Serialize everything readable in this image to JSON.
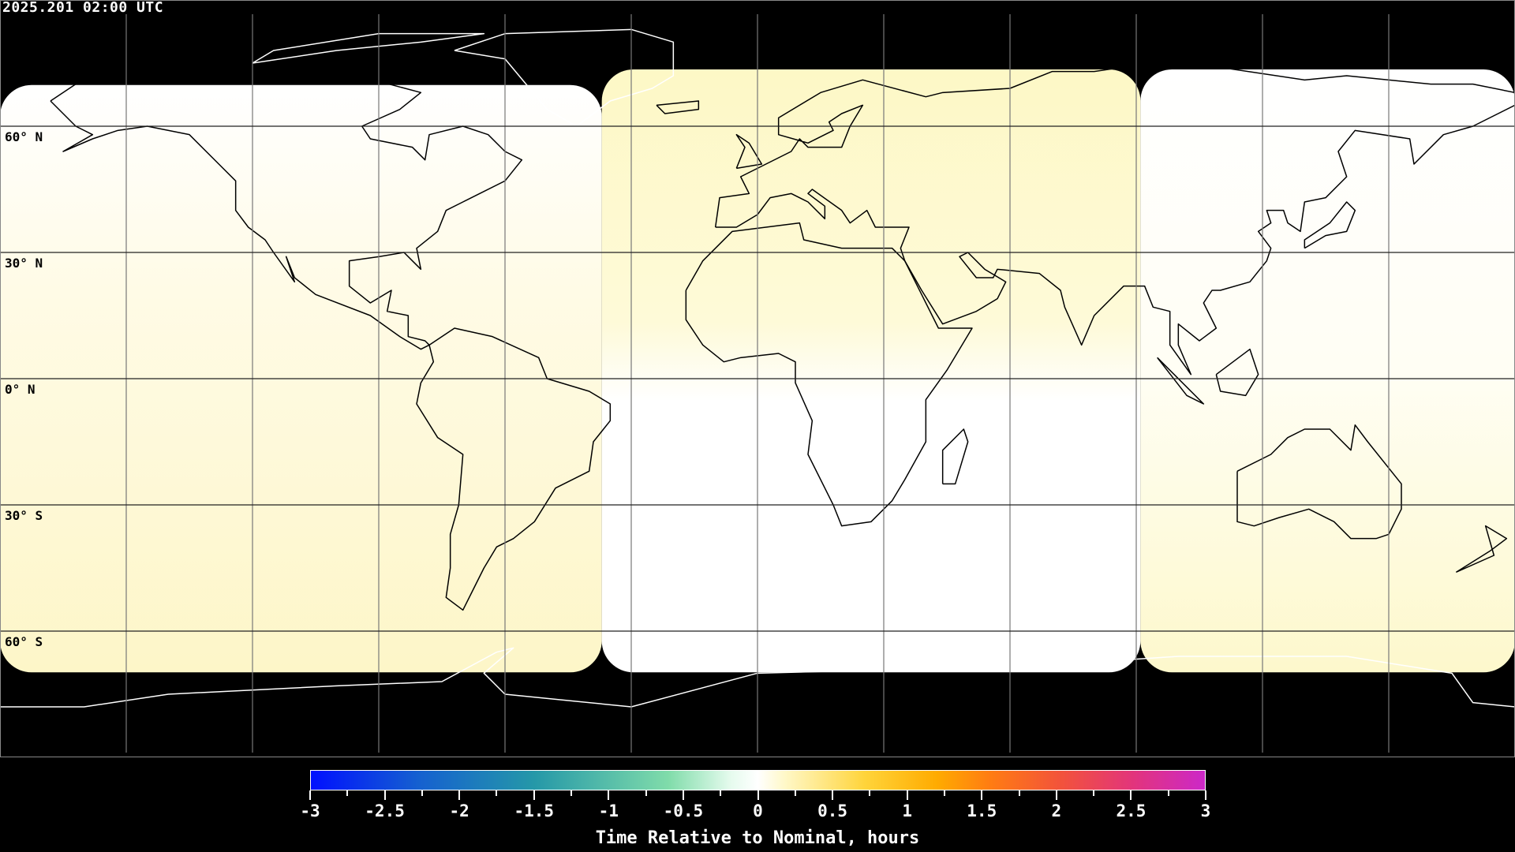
{
  "timestamp": "2025.201 02:00 UTC",
  "latitude_labels": [
    "60° N",
    "30° N",
    "0° N",
    "30° S",
    "60° S"
  ],
  "colors": {
    "background": "#000000",
    "field_light": "#fdf8cc",
    "field_white": "#ffffff"
  },
  "chart_data": {
    "type": "heatmap",
    "projection": "equirectangular",
    "grid": true,
    "grid_spacing_deg": 30,
    "colorbar": {
      "label": "Time Relative to Nominal, hours",
      "range": [
        -3,
        3
      ],
      "ticks": [
        "-3",
        "-2.5",
        "-2",
        "-1.5",
        "-1",
        "-0.5",
        "0",
        "0.5",
        "1",
        "1.5",
        "2",
        "2.5",
        "3"
      ],
      "colormap": [
        "#0010ff",
        "#2598a8",
        "#80dcaa",
        "#ffffff",
        "#ffd43a",
        "#ffab00",
        "#f2523c",
        "#cc28c8"
      ],
      "placement": "bottom"
    }
  }
}
